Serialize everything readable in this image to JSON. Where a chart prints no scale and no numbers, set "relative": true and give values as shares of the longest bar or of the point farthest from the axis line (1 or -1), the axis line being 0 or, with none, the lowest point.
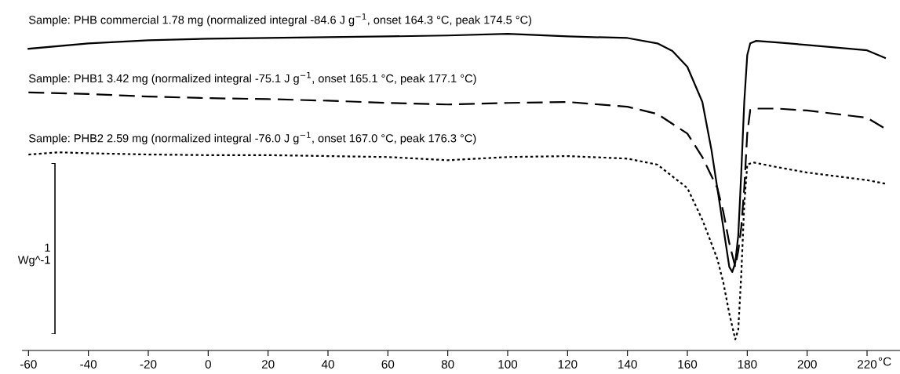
{
  "chart_data": {
    "type": "line",
    "relative": true,
    "xlabel": "°C",
    "xlim": [
      -62,
      231
    ],
    "xticks": [
      -60,
      -40,
      -20,
      0,
      20,
      40,
      60,
      80,
      100,
      120,
      140,
      160,
      180,
      200,
      220
    ],
    "grid": false,
    "legend": false,
    "marker": "none",
    "tick_labels": "x",
    "annotations": [
      "1\nWg^-1"
    ],
    "series": [
      {
        "name": "Sample: PHB commercial 1.78 mg (normalized integral -84.6 J g$^{−1}$, onset 164.3 °C, peak 174.5 °C)",
        "color": "#000000",
        "line_style": "solid",
        "x": [
          -60,
          -40,
          -20,
          0,
          20,
          40,
          60,
          80,
          100,
          120,
          140,
          150,
          155,
          160,
          165,
          168,
          170,
          172,
          174,
          175,
          176,
          177,
          178,
          179,
          180,
          181,
          183,
          190,
          200,
          220,
          226
        ],
        "values": [
          0.953,
          0.97,
          0.98,
          0.985,
          0.987,
          0.99,
          0.992,
          0.995,
          1.0,
          0.992,
          0.987,
          0.97,
          0.946,
          0.896,
          0.785,
          0.636,
          0.513,
          0.389,
          0.264,
          0.248,
          0.277,
          0.364,
          0.562,
          0.785,
          0.933,
          0.97,
          0.978,
          0.973,
          0.965,
          0.948,
          0.924
        ]
      },
      {
        "name": "Sample: PHB1 3.42 mg (normalized integral -75.1 J g$^{−1}$, onset 165.1 °C, peak 177.1 °C)",
        "color": "#000000",
        "line_style": "dashed",
        "x": [
          -60,
          -40,
          -20,
          0,
          20,
          40,
          60,
          80,
          100,
          120,
          140,
          150,
          160,
          165,
          170,
          172,
          174,
          176,
          177,
          178,
          179,
          180,
          181,
          183,
          190,
          200,
          220,
          226
        ],
        "values": [
          0.815,
          0.81,
          0.802,
          0.797,
          0.794,
          0.789,
          0.782,
          0.777,
          0.782,
          0.785,
          0.77,
          0.747,
          0.685,
          0.611,
          0.513,
          0.438,
          0.339,
          0.264,
          0.315,
          0.389,
          0.513,
          0.685,
          0.76,
          0.764,
          0.764,
          0.758,
          0.735,
          0.701
        ]
      },
      {
        "name": "Sample: PHB2 2.59 mg (normalized integral -76.0 J g$^{−1}$, onset 167.0 °C, peak 176.3 °C)",
        "color": "#000000",
        "line_style": "dotted",
        "x": [
          -60,
          -50,
          -40,
          -20,
          0,
          20,
          40,
          60,
          80,
          100,
          120,
          140,
          150,
          160,
          165,
          168,
          170,
          172,
          174,
          176,
          177,
          178,
          179,
          180,
          182,
          190,
          200,
          220,
          226
        ],
        "values": [
          0.619,
          0.626,
          0.623,
          0.619,
          0.617,
          0.617,
          0.614,
          0.611,
          0.601,
          0.611,
          0.614,
          0.606,
          0.587,
          0.513,
          0.413,
          0.339,
          0.289,
          0.215,
          0.117,
          0.035,
          0.066,
          0.24,
          0.463,
          0.587,
          0.594,
          0.579,
          0.562,
          0.538,
          0.527
        ]
      }
    ]
  }
}
